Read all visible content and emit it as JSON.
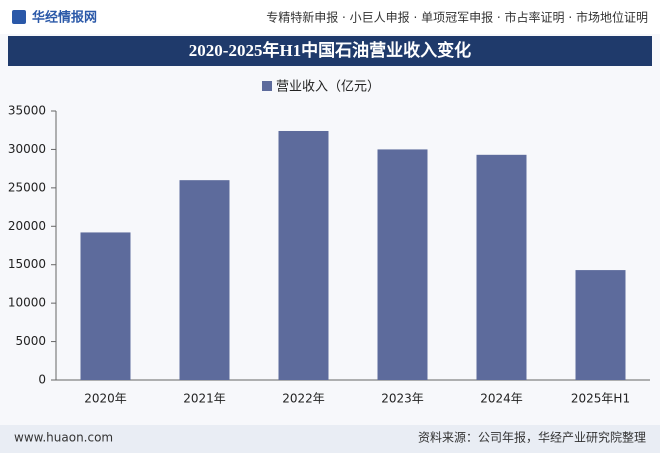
{
  "header": {
    "logo": "华经情报网",
    "links": "专精特新申报 · 小巨人申报 · 单项冠军申报 · 市占率证明 · 市场地位证明"
  },
  "chart_data": {
    "type": "bar",
    "title": "2020-2025年H1中国石油营业收入变化",
    "categories": [
      "2020年",
      "2021年",
      "2022年",
      "2023年",
      "2024年",
      "2025年H1"
    ],
    "series": [
      {
        "name": "营业收入（亿元）",
        "color": "#5d6b9c",
        "values": [
          19200,
          26000,
          32400,
          30000,
          29300,
          14300
        ]
      }
    ],
    "ylim": [
      0,
      35000
    ],
    "yticks": [
      0,
      5000,
      10000,
      15000,
      20000,
      25000,
      30000,
      35000
    ],
    "grid": false
  },
  "footer": {
    "website": "www.huaon.com",
    "source": "资料来源：公司年报，华经产业研究院整理"
  }
}
